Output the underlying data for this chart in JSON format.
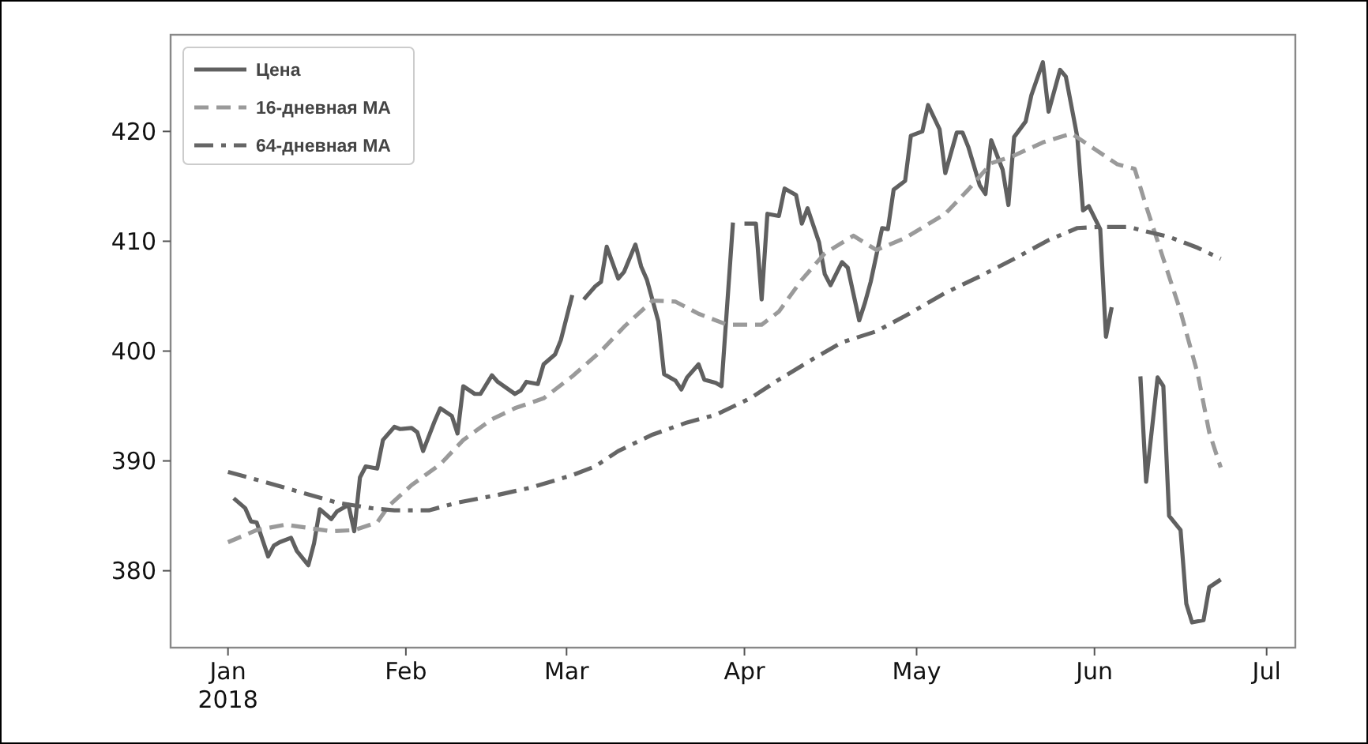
{
  "chart_data": {
    "type": "line",
    "xlim": [
      "2017-12-22",
      "2018-07-06"
    ],
    "ylim": [
      373,
      428.8
    ],
    "xticks": [
      {
        "value": "2018-01-01",
        "label": "Jan\n2018"
      },
      {
        "value": "2018-02-01",
        "label": "Feb"
      },
      {
        "value": "2018-03-01",
        "label": "Mar"
      },
      {
        "value": "2018-04-01",
        "label": "Apr"
      },
      {
        "value": "2018-05-01",
        "label": "May"
      },
      {
        "value": "2018-06-01",
        "label": "Jun"
      },
      {
        "value": "2018-07-01",
        "label": "Jul"
      }
    ],
    "yticks": [
      380,
      390,
      400,
      410,
      420
    ],
    "grid": false,
    "legend": "top left",
    "series": [
      {
        "name": "Цена",
        "color": "#606060",
        "line_style": "solid",
        "x": [
          "2018-01-02",
          "2018-01-04",
          "2018-01-05",
          "2018-01-06",
          "2018-01-08",
          "2018-01-09",
          "2018-01-10",
          "2018-01-12",
          "2018-01-13",
          "2018-01-15",
          "2018-01-16",
          "2018-01-17",
          "2018-01-19",
          "2018-01-20",
          "2018-01-22",
          "2018-01-23",
          "2018-01-24",
          "2018-01-25",
          "2018-01-27",
          "2018-01-28",
          "2018-01-30",
          "2018-01-31",
          "2018-02-02",
          "2018-02-03",
          "2018-02-04",
          "2018-02-06",
          "2018-02-07",
          "2018-02-09",
          "2018-02-10",
          "2018-02-11",
          "2018-02-13",
          "2018-02-14",
          "2018-02-16",
          "2018-02-17",
          "2018-02-20",
          "2018-02-21",
          "2018-02-22",
          "2018-02-24",
          "2018-02-25",
          "2018-02-27",
          "2018-02-28",
          "2018-03-02",
          "2018-03-03",
          "2018-03-04",
          "2018-03-06",
          "2018-03-07",
          "2018-03-08",
          "2018-03-10",
          "2018-03-11",
          "2018-03-13",
          "2018-03-14",
          "2018-03-15",
          "2018-03-17",
          "2018-03-18",
          "2018-03-20",
          "2018-03-21",
          "2018-03-22",
          "2018-03-24",
          "2018-03-25",
          "2018-03-27",
          "2018-03-28",
          "2018-03-30",
          "2018-03-31",
          "2018-04-01",
          "2018-04-03",
          "2018-04-04",
          "2018-04-05",
          "2018-04-07",
          "2018-04-08",
          "2018-04-10",
          "2018-04-11",
          "2018-04-12",
          "2018-04-14",
          "2018-04-15",
          "2018-04-16",
          "2018-04-18",
          "2018-04-19",
          "2018-04-21",
          "2018-04-22",
          "2018-04-23",
          "2018-04-25",
          "2018-04-26",
          "2018-04-27",
          "2018-04-29",
          "2018-04-30",
          "2018-05-02",
          "2018-05-03",
          "2018-05-05",
          "2018-05-06",
          "2018-05-08",
          "2018-05-09",
          "2018-05-10",
          "2018-05-12",
          "2018-05-13",
          "2018-05-14",
          "2018-05-16",
          "2018-05-17",
          "2018-05-18",
          "2018-05-20",
          "2018-05-21",
          "2018-05-23",
          "2018-05-24",
          "2018-05-26",
          "2018-05-27",
          "2018-05-29",
          "2018-05-30",
          "2018-05-31",
          "2018-06-02",
          "2018-06-03",
          "2018-06-04",
          "2018-06-06",
          "2018-06-09",
          "2018-06-10",
          "2018-06-12",
          "2018-06-13",
          "2018-06-14",
          "2018-06-16",
          "2018-06-17",
          "2018-06-18",
          "2018-06-20",
          "2018-06-21",
          "2018-06-23"
        ],
        "values": [
          386.6,
          385.7,
          384.5,
          384.4,
          381.3,
          382.3,
          382.6,
          383.0,
          381.8,
          380.5,
          382.5,
          385.6,
          384.7,
          385.4,
          386.0,
          383.6,
          388.5,
          389.5,
          389.3,
          391.9,
          393.1,
          392.9,
          393.0,
          392.6,
          390.9,
          393.6,
          394.8,
          394.1,
          392.5,
          396.8,
          396.1,
          396.1,
          397.8,
          397.2,
          396.1,
          396.4,
          397.2,
          397.0,
          398.8,
          399.7,
          401.0,
          405.1,
          null,
          404.7,
          405.9,
          406.3,
          409.5,
          406.6,
          407.2,
          409.7,
          407.7,
          406.5,
          402.7,
          397.9,
          397.3,
          396.5,
          397.6,
          398.8,
          397.4,
          397.1,
          396.8,
          411.7,
          null,
          411.6,
          411.6,
          404.7,
          412.5,
          412.3,
          414.8,
          414.2,
          411.6,
          413.0,
          409.9,
          407.0,
          406.0,
          408.1,
          407.6,
          402.8,
          404.4,
          406.3,
          411.2,
          411.1,
          414.7,
          415.5,
          419.6,
          420.0,
          422.4,
          420.2,
          416.2,
          419.9,
          419.9,
          418.6,
          415.1,
          414.3,
          419.2,
          416.5,
          413.3,
          419.5,
          420.9,
          423.3,
          426.3,
          421.8,
          425.6,
          425.0,
          419.5,
          412.8,
          413.2,
          411.1,
          401.3,
          404.0,
          null,
          397.7,
          388.1,
          397.6,
          396.8,
          385.0,
          383.7,
          377.0,
          375.3,
          375.5,
          378.5,
          379.2
        ]
      },
      {
        "name": "16-дневная MA",
        "color": "#9a9a9a",
        "line_style": "dashed",
        "x": [
          "2018-01-01",
          "2018-01-06",
          "2018-01-11",
          "2018-01-15",
          "2018-01-19",
          "2018-01-23",
          "2018-01-27",
          "2018-01-29",
          "2018-02-02",
          "2018-02-07",
          "2018-02-11",
          "2018-02-16",
          "2018-02-20",
          "2018-02-25",
          "2018-03-02",
          "2018-03-07",
          "2018-03-11",
          "2018-03-16",
          "2018-03-20",
          "2018-03-24",
          "2018-03-29",
          "2018-04-04",
          "2018-04-07",
          "2018-04-11",
          "2018-04-15",
          "2018-04-20",
          "2018-04-24",
          "2018-04-29",
          "2018-05-06",
          "2018-05-10",
          "2018-05-14",
          "2018-05-18",
          "2018-05-23",
          "2018-05-28",
          "2018-06-01",
          "2018-06-05",
          "2018-06-08",
          "2018-06-10",
          "2018-06-13",
          "2018-06-16",
          "2018-06-19",
          "2018-06-21",
          "2018-06-23"
        ],
        "values": [
          382.6,
          383.7,
          384.2,
          383.9,
          383.6,
          383.7,
          384.4,
          385.9,
          387.8,
          389.7,
          391.9,
          393.8,
          394.8,
          395.7,
          397.7,
          400.0,
          402.2,
          404.6,
          404.5,
          403.4,
          402.4,
          402.4,
          403.6,
          406.5,
          408.9,
          410.5,
          409.2,
          410.3,
          412.5,
          414.7,
          417.1,
          417.8,
          419.0,
          419.8,
          418.4,
          417.0,
          416.6,
          413.2,
          408.4,
          403.6,
          397.9,
          392.6,
          389.4
        ]
      },
      {
        "name": "64-дневная MA",
        "color": "#666666",
        "line_style": "dashdot",
        "x": [
          "2018-01-01",
          "2018-01-08",
          "2018-01-14",
          "2018-01-20",
          "2018-01-26",
          "2018-01-30",
          "2018-02-05",
          "2018-02-10",
          "2018-02-17",
          "2018-02-23",
          "2018-03-02",
          "2018-03-06",
          "2018-03-10",
          "2018-03-16",
          "2018-03-22",
          "2018-03-27",
          "2018-04-02",
          "2018-04-07",
          "2018-04-13",
          "2018-04-18",
          "2018-04-24",
          "2018-04-29",
          "2018-05-06",
          "2018-05-12",
          "2018-05-18",
          "2018-05-24",
          "2018-05-29",
          "2018-06-02",
          "2018-06-07",
          "2018-06-10",
          "2018-06-14",
          "2018-06-19",
          "2018-06-23"
        ],
        "values": [
          389.0,
          388.0,
          387.1,
          386.2,
          385.7,
          385.5,
          385.5,
          386.2,
          386.9,
          387.6,
          388.7,
          389.5,
          390.9,
          392.4,
          393.5,
          394.2,
          395.7,
          397.4,
          399.3,
          400.8,
          401.8,
          403.2,
          405.3,
          406.8,
          408.4,
          410.1,
          411.2,
          411.3,
          411.3,
          410.9,
          410.4,
          409.4,
          408.4
        ]
      }
    ]
  }
}
